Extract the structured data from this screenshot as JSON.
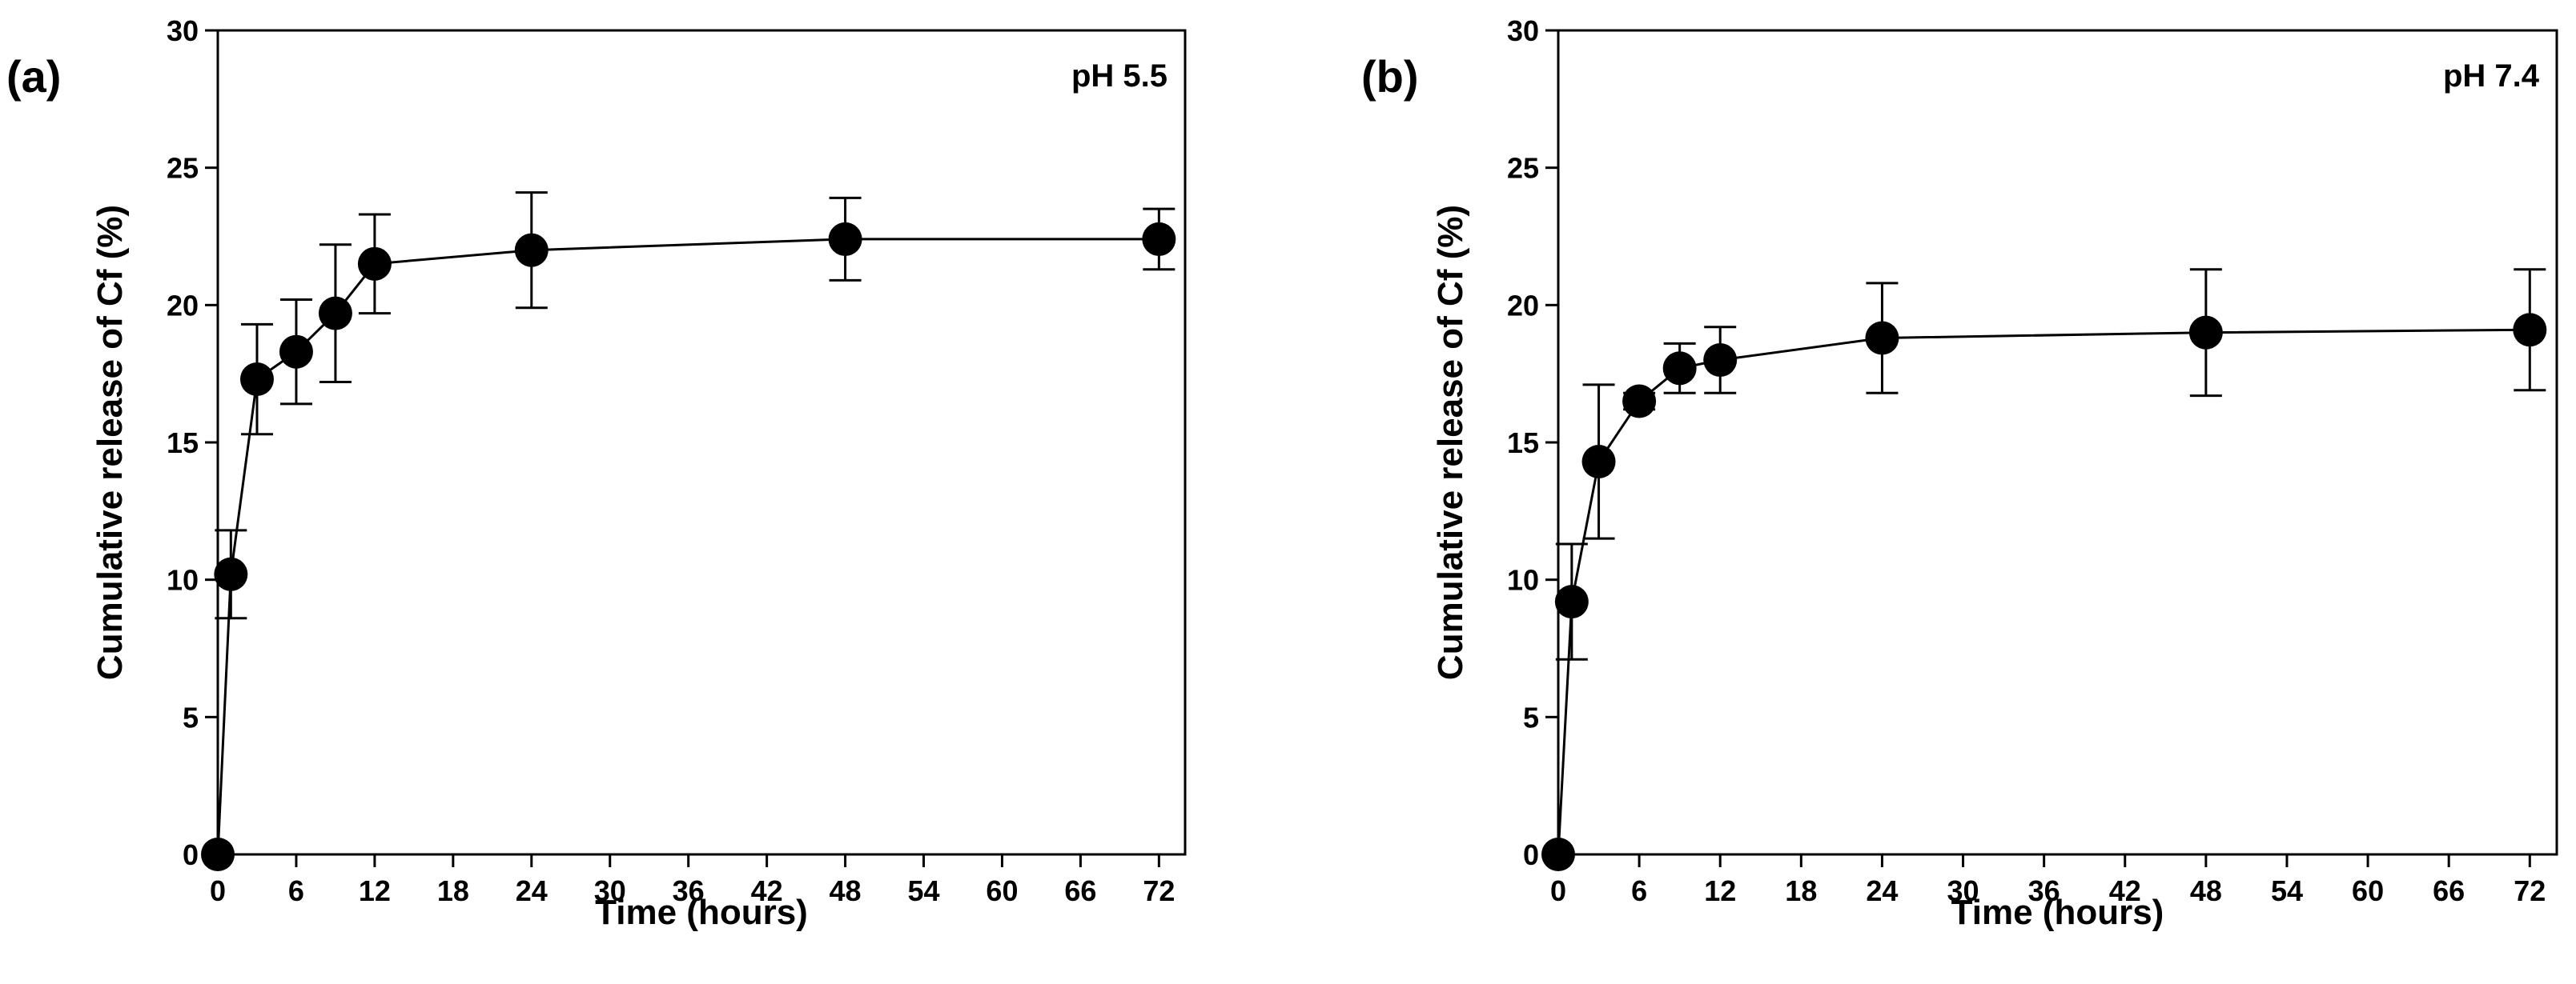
{
  "chart_data": [
    {
      "panel": "(a)",
      "type": "line",
      "annotation": "pH 5.5",
      "xlabel": "Time (hours)",
      "ylabel": "Cumulative release of Cf (%)",
      "xlim": [
        0,
        74
      ],
      "ylim": [
        0,
        30
      ],
      "xticks": [
        0,
        6,
        12,
        18,
        24,
        30,
        36,
        42,
        48,
        54,
        60,
        66,
        72
      ],
      "yticks": [
        0,
        5,
        10,
        15,
        20,
        25,
        30
      ],
      "x": [
        0,
        1,
        3,
        6,
        9,
        12,
        24,
        48,
        72
      ],
      "y": [
        0,
        10.2,
        17.3,
        18.3,
        19.7,
        21.5,
        22.0,
        22.4,
        22.4
      ],
      "error": [
        0,
        1.6,
        2.0,
        1.9,
        2.5,
        1.8,
        2.1,
        1.5,
        1.1
      ]
    },
    {
      "panel": "(b)",
      "type": "line",
      "annotation": "pH 7.4",
      "xlabel": "Time (hours)",
      "ylabel": "Cumulative release of Cf (%)",
      "xlim": [
        0,
        74
      ],
      "ylim": [
        0,
        30
      ],
      "xticks": [
        0,
        6,
        12,
        18,
        24,
        30,
        36,
        42,
        48,
        54,
        60,
        66,
        72
      ],
      "yticks": [
        0,
        5,
        10,
        15,
        20,
        25,
        30
      ],
      "x": [
        0,
        1,
        3,
        6,
        9,
        12,
        24,
        48,
        72
      ],
      "y": [
        0,
        9.2,
        14.3,
        16.5,
        17.7,
        18.0,
        18.8,
        19.0,
        19.1
      ],
      "error": [
        0,
        2.1,
        2.8,
        0.3,
        0.9,
        1.2,
        2.0,
        2.3,
        2.2
      ]
    }
  ]
}
